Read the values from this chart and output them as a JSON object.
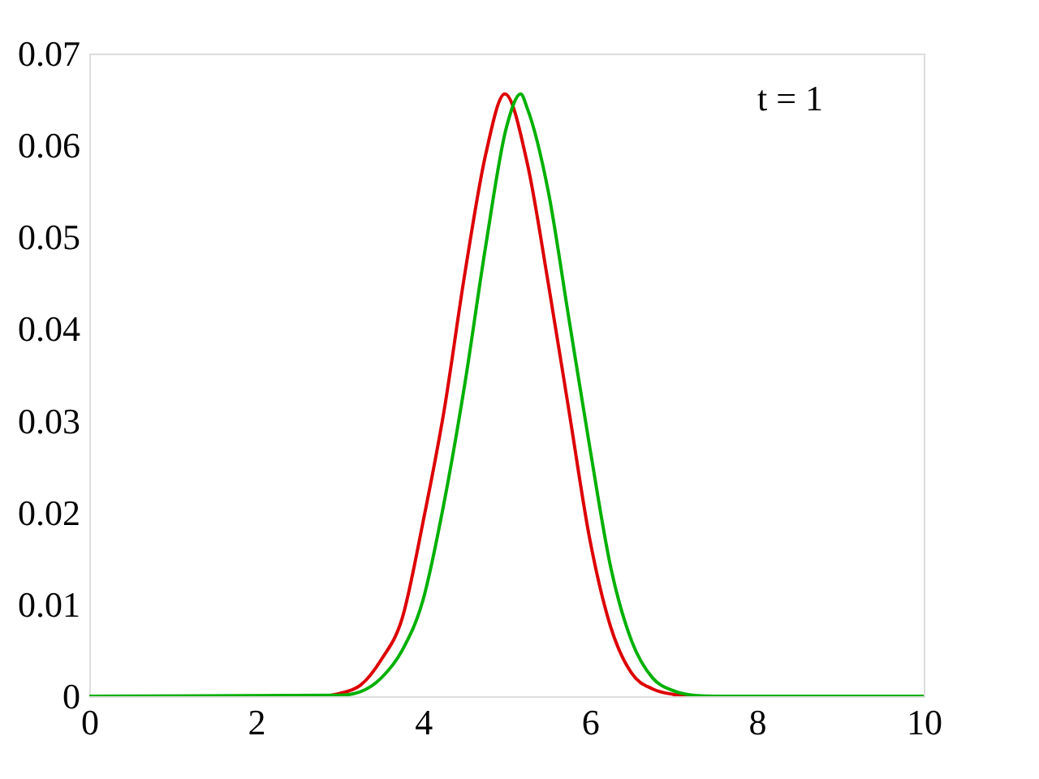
{
  "chart_data": {
    "type": "line",
    "xlim": [
      0,
      10
    ],
    "xticks": [
      0,
      2,
      4,
      6,
      8,
      10
    ],
    "ylim": [
      0,
      0.07
    ],
    "yticks": [
      0,
      0.01,
      0.02,
      0.03,
      0.04,
      0.05,
      0.06,
      0.07
    ],
    "grid": false,
    "marker": "none",
    "line_style": "solid",
    "annotations": [
      "t = 1"
    ],
    "series": [
      {
        "color": "#dd0000",
        "x": [
          0,
          2.75,
          3.0,
          3.25,
          3.5,
          3.75,
          4.0,
          4.25,
          4.5,
          4.75,
          4.98,
          5.25,
          5.5,
          5.75,
          6.0,
          6.25,
          6.5,
          6.75,
          7.0,
          7.25,
          10
        ],
        "values": [
          0,
          0,
          0.0003,
          0.0012,
          0.004,
          0.0085,
          0.019,
          0.031,
          0.046,
          0.059,
          0.0656,
          0.058,
          0.045,
          0.031,
          0.017,
          0.0075,
          0.0025,
          0.0008,
          0.0002,
          0,
          0
        ]
      },
      {
        "color": "#00b000",
        "x": [
          0,
          3.0,
          3.25,
          3.5,
          3.75,
          4.0,
          4.25,
          4.5,
          4.75,
          5.0,
          5.17,
          5.25,
          5.5,
          5.75,
          6.0,
          6.25,
          6.5,
          6.75,
          7.0,
          7.25,
          7.5,
          10
        ],
        "values": [
          0,
          0.0001,
          0.0005,
          0.002,
          0.005,
          0.0105,
          0.021,
          0.034,
          0.049,
          0.062,
          0.0656,
          0.064,
          0.055,
          0.041,
          0.027,
          0.014,
          0.006,
          0.002,
          0.0006,
          0.0001,
          0,
          0
        ]
      }
    ]
  }
}
